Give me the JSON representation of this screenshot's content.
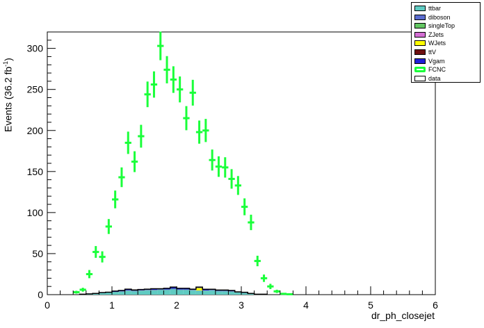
{
  "chart_data": {
    "type": "bar",
    "xlabel": "dr_ph_closejet",
    "ylabel": "Events (36.2 fb",
    "ylabel_sup": "-1",
    "ylabel_close": ")",
    "xlim": [
      0,
      6
    ],
    "ylim": [
      0,
      320
    ],
    "xticks": [
      0,
      1,
      2,
      3,
      4,
      5,
      6
    ],
    "yticks": [
      0,
      50,
      100,
      150,
      200,
      250,
      300
    ],
    "bin_width": 0.1,
    "legend": [
      {
        "name": "ttbar",
        "color": "#5fcbc2",
        "style": "fill"
      },
      {
        "name": "diboson",
        "color": "#5b6ccf",
        "style": "fill"
      },
      {
        "name": "singleTop",
        "color": "#63c662",
        "style": "fill"
      },
      {
        "name": "ZJets",
        "color": "#d36ed3",
        "style": "fill"
      },
      {
        "name": "WJets",
        "color": "#ffff00",
        "style": "fill"
      },
      {
        "name": "ttV",
        "color": "#6e1010",
        "style": "fill"
      },
      {
        "name": "Vgam",
        "color": "#2020d8",
        "style": "fill"
      },
      {
        "name": "FCNC",
        "color": "#1aff3a",
        "style": "line"
      },
      {
        "name": "data",
        "color": "#ffffff",
        "style": "fill"
      }
    ],
    "stack": {
      "x": [
        0.5,
        0.6,
        0.7,
        0.8,
        0.9,
        1.0,
        1.1,
        1.2,
        1.3,
        1.4,
        1.5,
        1.6,
        1.7,
        1.8,
        1.9,
        2.0,
        2.1,
        2.2,
        2.3,
        2.4,
        2.5,
        2.6,
        2.7,
        2.8,
        2.9,
        3.0,
        3.1,
        3.2,
        3.3
      ],
      "series": [
        {
          "name": "ttbar",
          "values": [
            0.5,
            1,
            1.5,
            2,
            2.5,
            3,
            3.5,
            4.5,
            4,
            4.5,
            5,
            5,
            5.5,
            5.5,
            6.5,
            5.5,
            5.5,
            5,
            4.5,
            4.5,
            5,
            4,
            4,
            3.5,
            2.5,
            2,
            1,
            0.5,
            0.5
          ]
        },
        {
          "name": "diboson",
          "values": [
            0,
            0,
            0,
            0,
            0,
            0,
            0.3,
            0.3,
            0.3,
            0.3,
            0.3,
            0.3,
            0.3,
            0.3,
            0.3,
            0.3,
            0.3,
            0.3,
            0.3,
            0.3,
            0.3,
            0.3,
            0.3,
            0.3,
            0.2,
            0.2,
            0,
            0,
            0
          ]
        },
        {
          "name": "singleTop",
          "values": [
            0,
            0,
            0,
            0,
            0,
            0.3,
            0.3,
            0.4,
            0.4,
            0.4,
            0.4,
            0.4,
            0.4,
            0.4,
            0.4,
            0.4,
            0.4,
            0.4,
            0.4,
            0.3,
            0.3,
            0.3,
            0.3,
            0.3,
            0.2,
            0.2,
            0,
            0,
            0
          ]
        },
        {
          "name": "ZJets",
          "values": [
            0,
            0,
            0,
            0,
            0,
            0,
            0,
            0,
            0,
            0,
            0,
            0,
            0,
            0,
            0,
            0,
            0,
            0,
            0,
            0,
            0,
            0,
            0,
            0,
            0,
            0,
            0,
            0,
            0
          ]
        },
        {
          "name": "WJets",
          "values": [
            0,
            0,
            0,
            0,
            0,
            0,
            0,
            0,
            0,
            0,
            0,
            0,
            0,
            0,
            0,
            0,
            0,
            0,
            3,
            0,
            0,
            0,
            0,
            0,
            0,
            0,
            0,
            0,
            0
          ]
        },
        {
          "name": "ttV",
          "values": [
            0,
            0,
            0,
            0,
            0,
            0,
            0,
            0,
            0,
            0,
            0,
            0,
            0,
            0,
            0,
            0,
            0,
            0,
            0,
            0,
            0,
            0,
            0,
            0,
            0,
            0,
            0,
            0,
            0
          ]
        },
        {
          "name": "Vgam",
          "values": [
            0,
            0,
            0,
            0.5,
            0.5,
            1,
            1,
            1.5,
            1,
            1,
            1,
            1.5,
            1,
            1.5,
            2,
            1.5,
            1.5,
            1,
            1,
            1.5,
            1,
            1,
            1,
            1,
            0.5,
            0.5,
            0.5,
            0,
            0
          ]
        }
      ]
    },
    "fcnc": {
      "x": [
        0.45,
        0.55,
        0.65,
        0.75,
        0.85,
        0.95,
        1.05,
        1.15,
        1.25,
        1.35,
        1.45,
        1.55,
        1.65,
        1.75,
        1.85,
        1.95,
        2.05,
        2.15,
        2.25,
        2.35,
        2.45,
        2.55,
        2.65,
        2.75,
        2.85,
        2.95,
        3.05,
        3.15,
        3.25,
        3.35,
        3.45,
        3.55,
        3.65,
        3.75
      ],
      "y": [
        3,
        6,
        25,
        52,
        46,
        83,
        116,
        143,
        185,
        162,
        193,
        244,
        256,
        303,
        274,
        262,
        250,
        215,
        246,
        198,
        200,
        164,
        156,
        155,
        141,
        133,
        107,
        88,
        41,
        20,
        10,
        4,
        1,
        0.5
      ],
      "err": [
        1.7,
        2.4,
        5,
        7.2,
        6.8,
        9.1,
        10.8,
        12,
        13.6,
        12.7,
        13.9,
        15.6,
        16,
        17.4,
        16.6,
        16.2,
        15.8,
        14.7,
        15.7,
        14.1,
        14.1,
        12.8,
        12.5,
        12.4,
        11.9,
        11.5,
        10.3,
        9.4,
        6.4,
        4.5,
        3.2,
        2,
        1,
        0.7
      ]
    }
  }
}
